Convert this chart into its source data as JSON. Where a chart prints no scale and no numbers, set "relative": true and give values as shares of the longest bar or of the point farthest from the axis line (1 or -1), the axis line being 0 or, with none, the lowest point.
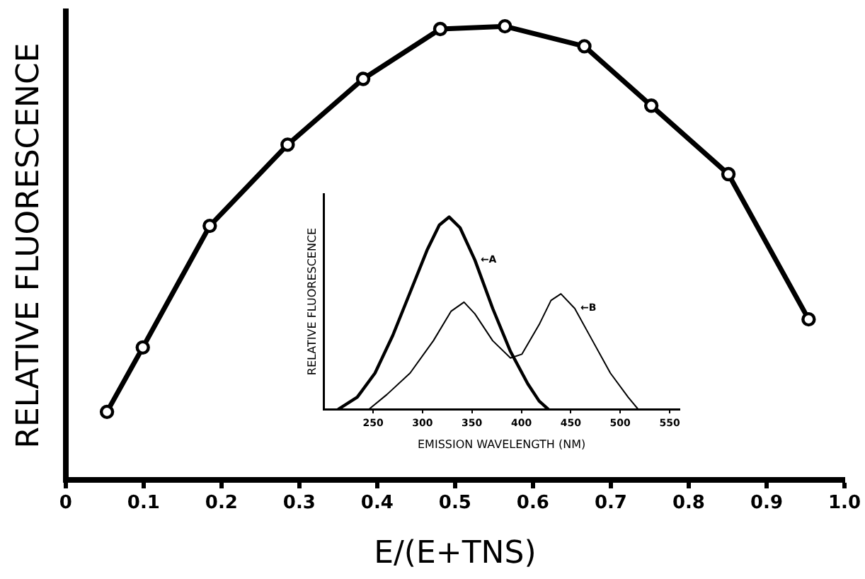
{
  "chart_data": [
    {
      "type": "line",
      "xlabel": "E/(E+TNS)",
      "ylabel": "RELATIVE FLUORESCENCE",
      "relative": true,
      "marker": "circle",
      "line_style": "solid",
      "legend": false,
      "grid": false,
      "x": [
        0.053,
        0.099,
        0.185,
        0.285,
        0.382,
        0.481,
        0.564,
        0.666,
        0.752,
        0.851,
        0.954
      ],
      "series": [
        {
          "color": "#000000",
          "values": [
            0.15,
            0.292,
            0.56,
            0.739,
            0.884,
            0.994,
            1,
            0.956,
            0.825,
            0.674,
            0.354
          ]
        }
      ],
      "xlim": [
        0,
        1
      ],
      "xticks": [
        0,
        0.1,
        0.2,
        0.3,
        0.4,
        0.5,
        0.6,
        0.7,
        0.8,
        0.9,
        {
          "value": 1,
          "label": "1.0"
        }
      ]
    },
    {
      "type": "line",
      "xlabel": "EMISSION WAVELENGTH (NM)",
      "ylabel": "RELATIVE FLUORESCENCE",
      "relative": true,
      "marker": "none",
      "line_style": "solid",
      "legend": false,
      "grid": false,
      "xlim": [
        200,
        560
      ],
      "xticks": [
        250,
        300,
        350,
        400,
        450,
        500,
        550
      ],
      "series": [
        {
          "name": "←A",
          "color": "#000000",
          "x": [
            215,
            234,
            252,
            270,
            287.5,
            305,
            317,
            327,
            338,
            353,
            371,
            389,
            406.5,
            418,
            427
          ],
          "values": [
            0,
            0.062,
            0.188,
            0.384,
            0.608,
            0.832,
            0.958,
            1,
            0.944,
            0.776,
            0.524,
            0.3,
            0.132,
            0.042,
            0
          ]
        },
        {
          "name": "←B",
          "color": "#000000",
          "x": [
            246,
            264,
            287.5,
            311,
            329,
            342,
            353,
            371,
            389,
            400.6,
            418,
            430,
            440,
            454,
            472,
            490,
            508,
            518
          ],
          "values": [
            0,
            0.076,
            0.188,
            0.356,
            0.51,
            0.557,
            0.496,
            0.356,
            0.266,
            0.286,
            0.44,
            0.566,
            0.6,
            0.524,
            0.356,
            0.188,
            0.062,
            0
          ]
        }
      ]
    }
  ]
}
